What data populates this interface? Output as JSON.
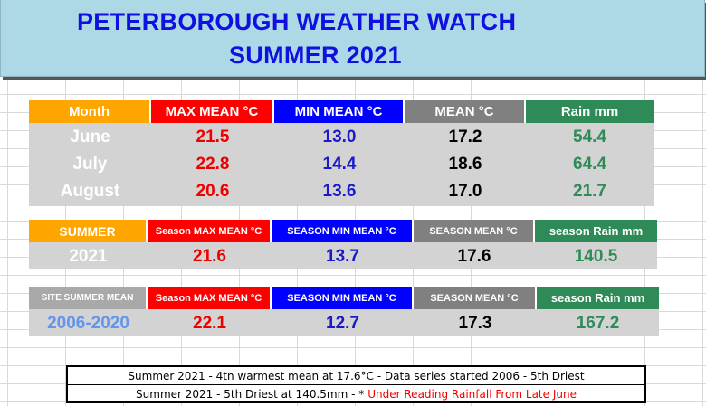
{
  "banner": {
    "title": "PETERBOROUGH WEATHER WATCH",
    "subtitle": "SUMMER 2021"
  },
  "monthly": {
    "headers": [
      "Month",
      "MAX MEAN °C",
      "MIN MEAN °C",
      "MEAN °C",
      "Rain mm"
    ],
    "rows": [
      {
        "month": "June",
        "max": "21.5",
        "min": "13.0",
        "mean": "17.2",
        "rain": "54.4"
      },
      {
        "month": "July",
        "max": "22.8",
        "min": "14.4",
        "mean": "18.6",
        "rain": "64.4"
      },
      {
        "month": "August",
        "max": "20.6",
        "min": "13.6",
        "mean": "17.0",
        "rain": "21.7"
      }
    ]
  },
  "season": {
    "headers": [
      "SUMMER",
      "Season MAX MEAN °C",
      "SEASON MIN MEAN °C",
      "SEASON MEAN °C",
      "season Rain mm"
    ],
    "row": {
      "label": "2021",
      "max": "21.6",
      "min": "13.7",
      "mean": "17.6",
      "rain": "140.5"
    }
  },
  "site": {
    "headers": [
      "SITE SUMMER MEAN",
      "Season MAX MEAN °C",
      "SEASON MIN MEAN °C",
      "SEASON MEAN °C",
      "season Rain mm"
    ],
    "row": {
      "label": "2006-2020",
      "max": "22.1",
      "min": "12.7",
      "mean": "17.3",
      "rain": "167.2"
    }
  },
  "notes": {
    "line1": "Summer 2021 -  4tn warmest mean at 17.6°C - Data series  started 2006 - 5th Driest",
    "line2": "Summer 2021 -  5th Driest at 140.5mm - *",
    "line2_highlight": "Under Reading Rainfall From Late June"
  },
  "colors": {
    "banner_bg": "#add8e6",
    "title": "#1010e0",
    "orange": "#ffa500",
    "red": "#ff0000",
    "blue": "#0000ff",
    "grey": "#808080",
    "green": "#2e8b57",
    "panel": "#d3d3d3"
  }
}
